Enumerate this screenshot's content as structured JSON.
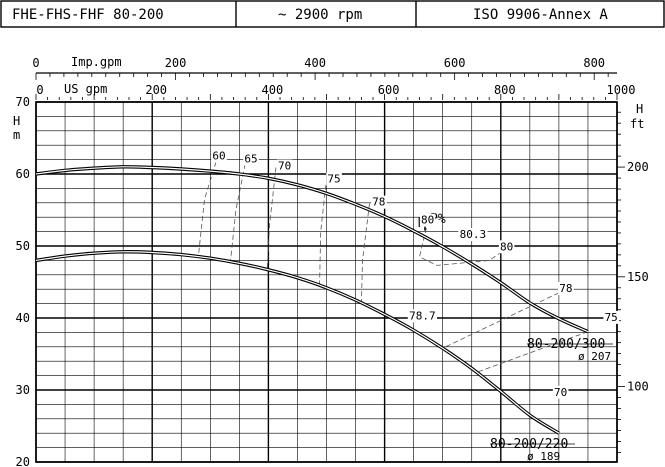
{
  "header": {
    "series_label": "FHE-FHS-FHF 80-200",
    "speed_label": "~ 2900 rpm",
    "standard_label": "ISO 9906-Annex A"
  },
  "chart_data": {
    "type": "line",
    "title": "",
    "xaxis_us": {
      "label": "US gpm",
      "min": 0,
      "max": 1000,
      "ticks": [
        0,
        200,
        400,
        600,
        800,
        1000
      ]
    },
    "xaxis_imp": {
      "label": "Imp.gpm",
      "ticks": [
        0,
        200,
        400,
        600,
        800
      ]
    },
    "yaxis_m": {
      "label_top": "H",
      "label_bottom": "m",
      "min": 20,
      "max": 70,
      "ticks": [
        20,
        30,
        40,
        50,
        60,
        70
      ]
    },
    "yaxis_ft": {
      "label_top": "H",
      "label_bottom": "ft",
      "ticks": [
        100,
        150,
        200
      ]
    },
    "grid": true,
    "series": [
      {
        "name": "80-200/300",
        "diameter": "ø 207",
        "points": [
          [
            0,
            60.0
          ],
          [
            50,
            60.5
          ],
          [
            100,
            60.8
          ],
          [
            150,
            61.0
          ],
          [
            200,
            60.9
          ],
          [
            250,
            60.7
          ],
          [
            300,
            60.4
          ],
          [
            350,
            60.0
          ],
          [
            400,
            59.4
          ],
          [
            450,
            58.5
          ],
          [
            500,
            57.3
          ],
          [
            550,
            55.8
          ],
          [
            600,
            54.1
          ],
          [
            650,
            52.1
          ],
          [
            700,
            49.9
          ],
          [
            750,
            47.5
          ],
          [
            800,
            44.9
          ],
          [
            850,
            42.1
          ],
          [
            900,
            39.9
          ],
          [
            950,
            38.1
          ]
        ]
      },
      {
        "name": "80-200/220",
        "diameter": "ø 189",
        "points": [
          [
            0,
            48.0
          ],
          [
            50,
            48.6
          ],
          [
            100,
            49.0
          ],
          [
            150,
            49.2
          ],
          [
            200,
            49.1
          ],
          [
            250,
            48.8
          ],
          [
            300,
            48.3
          ],
          [
            350,
            47.6
          ],
          [
            400,
            46.7
          ],
          [
            450,
            45.6
          ],
          [
            500,
            44.2
          ],
          [
            550,
            42.5
          ],
          [
            600,
            40.5
          ],
          [
            650,
            38.3
          ],
          [
            700,
            35.8
          ],
          [
            750,
            33.0
          ],
          [
            800,
            29.8
          ],
          [
            850,
            26.5
          ],
          [
            900,
            24.0
          ]
        ]
      }
    ],
    "efficiency": {
      "symbol": "η",
      "unit_label": "P%",
      "labels": [
        {
          "text": "60",
          "x": 315,
          "y": 62.0
        },
        {
          "text": "65",
          "x": 370,
          "y": 61.6
        },
        {
          "text": "70",
          "x": 428,
          "y": 60.6
        },
        {
          "text": "75",
          "x": 513,
          "y": 58.8
        },
        {
          "text": "78",
          "x": 590,
          "y": 55.6
        },
        {
          "text": "80",
          "x": 674,
          "y": 53.1
        },
        {
          "text": "80.3",
          "x": 752,
          "y": 51.1
        },
        {
          "text": "80",
          "x": 810,
          "y": 49.4
        },
        {
          "text": "78",
          "x": 912,
          "y": 43.6
        },
        {
          "text": "75",
          "x": 990,
          "y": 39.6
        },
        {
          "text": "78.7",
          "x": 665,
          "y": 39.8
        },
        {
          "text": "70",
          "x": 903,
          "y": 29.2
        }
      ],
      "contours": [
        [
          [
            310,
            61.7
          ],
          [
            290,
            56.5
          ],
          [
            280,
            49.0
          ]
        ],
        [
          [
            360,
            61.4
          ],
          [
            344,
            55.0
          ],
          [
            335,
            48.0
          ]
        ],
        [
          [
            413,
            60.9
          ],
          [
            402,
            53.0
          ],
          [
            398,
            46.7
          ]
        ],
        [
          [
            499,
            58.5
          ],
          [
            490,
            52.0
          ],
          [
            488,
            44.2
          ]
        ],
        [
          [
            574,
            55.9
          ],
          [
            562,
            48.0
          ],
          [
            560,
            42.0
          ]
        ],
        [
          [
            672,
            52.5
          ],
          [
            660,
            48.5
          ],
          [
            690,
            47.3
          ],
          [
            780,
            48.0
          ],
          [
            800,
            49.1
          ]
        ],
        [
          [
            900,
            43.5
          ],
          [
            700,
            35.8
          ]
        ],
        [
          [
            950,
            38.1
          ],
          [
            760,
            32.5
          ]
        ]
      ]
    }
  }
}
